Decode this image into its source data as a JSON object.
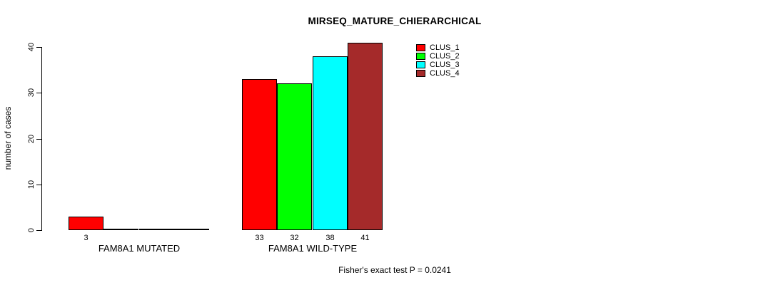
{
  "chart_data": {
    "type": "bar",
    "title": "MIRSEQ_MATURE_CHIERARCHICAL",
    "ylabel": "number of cases",
    "xlabel": "",
    "ylim": [
      0,
      40
    ],
    "yticks": [
      0,
      10,
      20,
      30,
      40
    ],
    "grid": false,
    "legend_position": "top-right",
    "categories": [
      "FAM8A1 MUTATED",
      "FAM8A1 WILD-TYPE"
    ],
    "series": [
      {
        "name": "CLUS_1",
        "color": "#ff0000",
        "values": [
          3,
          33
        ]
      },
      {
        "name": "CLUS_2",
        "color": "#00ff00",
        "values": [
          0,
          32
        ]
      },
      {
        "name": "CLUS_3",
        "color": "#00ffff",
        "values": [
          0,
          38
        ]
      },
      {
        "name": "CLUS_4",
        "color": "#a52a2a",
        "values": [
          0,
          41
        ]
      }
    ],
    "bar_labels": [
      [
        "3",
        "",
        "",
        ""
      ],
      [
        "33",
        "32",
        "38",
        "41"
      ]
    ],
    "annotation": "Fisher's exact test P = 0.0241"
  }
}
